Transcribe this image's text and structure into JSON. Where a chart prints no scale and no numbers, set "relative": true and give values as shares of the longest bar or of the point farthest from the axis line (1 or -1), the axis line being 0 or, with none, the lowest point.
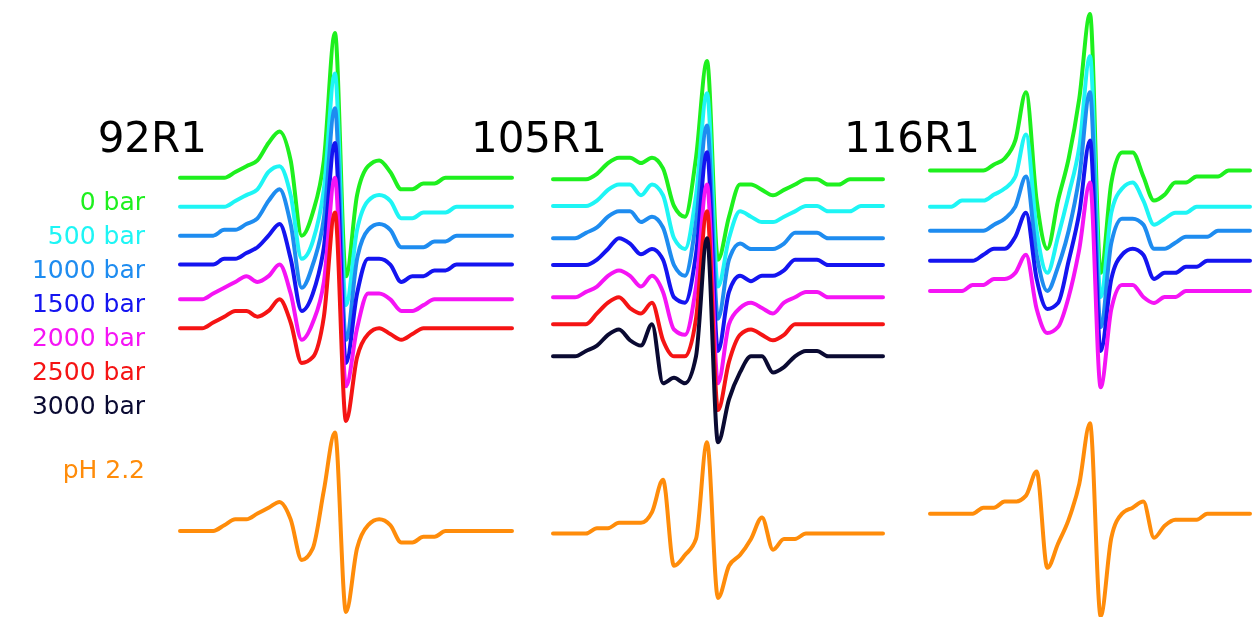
{
  "chart_data": [
    {
      "type": "line",
      "title": "92R1",
      "relative": true,
      "legend": "left",
      "categories": [
        null,
        null,
        null,
        null,
        null,
        null,
        null,
        null,
        null,
        null,
        null,
        null,
        null,
        null,
        null,
        null,
        null,
        null,
        null,
        null,
        null,
        null,
        null,
        null,
        null,
        null,
        null,
        null,
        null,
        null,
        null
      ],
      "series": [
        {
          "name": "0 bar",
          "color": "#1ef01e",
          "values": [
            0.75,
            0.75,
            0.75,
            0.75,
            0.75,
            0.76,
            0.77,
            0.78,
            0.81,
            0.83,
            0.78,
            0.65,
            0.69,
            0.78,
            1.0,
            0.58,
            0.72,
            0.77,
            0.78,
            0.76,
            0.73,
            0.73,
            0.74,
            0.74,
            0.75,
            0.75,
            0.75,
            0.75,
            0.75,
            0.75,
            0.75
          ]
        },
        {
          "name": "500 bar",
          "color": "#1ef5f5",
          "values": [
            0.7,
            0.7,
            0.7,
            0.7,
            0.7,
            0.71,
            0.72,
            0.73,
            0.76,
            0.77,
            0.72,
            0.61,
            0.64,
            0.73,
            0.93,
            0.53,
            0.66,
            0.71,
            0.72,
            0.71,
            0.68,
            0.68,
            0.69,
            0.69,
            0.69,
            0.7,
            0.7,
            0.7,
            0.7,
            0.7,
            0.7
          ]
        },
        {
          "name": "1000 bar",
          "color": "#1e8cf0",
          "values": [
            0.65,
            0.65,
            0.65,
            0.65,
            0.66,
            0.66,
            0.67,
            0.68,
            0.71,
            0.73,
            0.67,
            0.56,
            0.6,
            0.68,
            0.87,
            0.47,
            0.61,
            0.66,
            0.67,
            0.66,
            0.63,
            0.63,
            0.63,
            0.64,
            0.64,
            0.65,
            0.65,
            0.65,
            0.65,
            0.65,
            0.65
          ]
        },
        {
          "name": "1500 bar",
          "color": "#1414f0",
          "values": [
            0.6,
            0.6,
            0.6,
            0.6,
            0.61,
            0.61,
            0.62,
            0.63,
            0.65,
            0.67,
            0.61,
            0.52,
            0.55,
            0.63,
            0.81,
            0.43,
            0.55,
            0.61,
            0.61,
            0.6,
            0.57,
            0.58,
            0.58,
            0.59,
            0.59,
            0.6,
            0.6,
            0.6,
            0.6,
            0.6,
            0.6
          ]
        },
        {
          "name": "2000 bar",
          "color": "#f514f5",
          "values": [
            0.54,
            0.54,
            0.54,
            0.55,
            0.56,
            0.57,
            0.58,
            0.57,
            0.58,
            0.6,
            0.55,
            0.47,
            0.5,
            0.57,
            0.75,
            0.39,
            0.49,
            0.55,
            0.55,
            0.54,
            0.52,
            0.52,
            0.53,
            0.54,
            0.54,
            0.54,
            0.54,
            0.54,
            0.54,
            0.54,
            0.54
          ]
        },
        {
          "name": "2500 bar",
          "color": "#f51414",
          "values": [
            0.49,
            0.49,
            0.49,
            0.5,
            0.51,
            0.52,
            0.52,
            0.51,
            0.52,
            0.54,
            0.5,
            0.43,
            0.44,
            0.51,
            0.69,
            0.33,
            0.44,
            0.48,
            0.49,
            0.48,
            0.47,
            0.48,
            0.49,
            0.49,
            0.49,
            0.49,
            0.49,
            0.49,
            0.49,
            0.49,
            0.49
          ]
        },
        {
          "name": "pH 2.2",
          "color": "#ff8c0a",
          "values": [
            0.14,
            0.14,
            0.14,
            0.14,
            0.15,
            0.16,
            0.16,
            0.17,
            0.18,
            0.19,
            0.16,
            0.09,
            0.11,
            0.21,
            0.31,
            0.0,
            0.11,
            0.15,
            0.16,
            0.15,
            0.12,
            0.12,
            0.13,
            0.13,
            0.14,
            0.14,
            0.14,
            0.14,
            0.14,
            0.14,
            0.14
          ]
        }
      ]
    },
    {
      "type": "line",
      "title": "105R1",
      "relative": true,
      "categories": [
        null,
        null,
        null,
        null,
        null,
        null,
        null,
        null,
        null,
        null,
        null,
        null,
        null,
        null,
        null,
        null,
        null,
        null,
        null,
        null,
        null,
        null,
        null,
        null,
        null,
        null,
        null,
        null,
        null,
        null,
        null
      ],
      "series": [
        {
          "color": "#1ef01e",
          "values": [
            0.78,
            0.78,
            0.78,
            0.78,
            0.79,
            0.81,
            0.82,
            0.82,
            0.81,
            0.82,
            0.8,
            0.73,
            0.71,
            0.82,
            1.0,
            0.63,
            0.71,
            0.77,
            0.77,
            0.76,
            0.75,
            0.76,
            0.77,
            0.78,
            0.78,
            0.77,
            0.77,
            0.78,
            0.78,
            0.78,
            0.78
          ]
        },
        {
          "color": "#1ef5f5",
          "values": [
            0.73,
            0.73,
            0.73,
            0.73,
            0.74,
            0.76,
            0.77,
            0.77,
            0.75,
            0.77,
            0.75,
            0.67,
            0.65,
            0.75,
            0.94,
            0.58,
            0.67,
            0.72,
            0.71,
            0.7,
            0.7,
            0.71,
            0.72,
            0.73,
            0.73,
            0.72,
            0.72,
            0.72,
            0.73,
            0.73,
            0.73
          ]
        },
        {
          "color": "#1e8cf0",
          "values": [
            0.67,
            0.67,
            0.67,
            0.68,
            0.69,
            0.71,
            0.72,
            0.72,
            0.7,
            0.71,
            0.69,
            0.62,
            0.6,
            0.7,
            0.88,
            0.52,
            0.63,
            0.66,
            0.65,
            0.65,
            0.65,
            0.66,
            0.68,
            0.68,
            0.68,
            0.67,
            0.67,
            0.67,
            0.67,
            0.67,
            0.67
          ]
        },
        {
          "color": "#1414f0",
          "values": [
            0.62,
            0.62,
            0.62,
            0.62,
            0.63,
            0.65,
            0.67,
            0.66,
            0.64,
            0.65,
            0.63,
            0.56,
            0.55,
            0.64,
            0.83,
            0.46,
            0.57,
            0.6,
            0.59,
            0.6,
            0.6,
            0.61,
            0.63,
            0.63,
            0.63,
            0.62,
            0.62,
            0.62,
            0.62,
            0.62,
            0.62
          ]
        },
        {
          "color": "#f514f5",
          "values": [
            0.56,
            0.56,
            0.56,
            0.57,
            0.58,
            0.6,
            0.61,
            0.6,
            0.58,
            0.6,
            0.57,
            0.5,
            0.49,
            0.58,
            0.77,
            0.4,
            0.51,
            0.54,
            0.55,
            0.54,
            0.53,
            0.55,
            0.56,
            0.57,
            0.57,
            0.56,
            0.56,
            0.56,
            0.56,
            0.56,
            0.56
          ]
        },
        {
          "color": "#f51414",
          "values": [
            0.51,
            0.51,
            0.51,
            0.51,
            0.53,
            0.55,
            0.56,
            0.54,
            0.53,
            0.55,
            0.48,
            0.45,
            0.45,
            0.52,
            0.72,
            0.35,
            0.44,
            0.49,
            0.5,
            0.49,
            0.48,
            0.49,
            0.51,
            0.51,
            0.51,
            0.51,
            0.51,
            0.51,
            0.51,
            0.51,
            0.51
          ]
        },
        {
          "name": "3000 bar",
          "color": "#0a0a32",
          "values": [
            0.45,
            0.45,
            0.45,
            0.46,
            0.47,
            0.49,
            0.5,
            0.48,
            0.47,
            0.51,
            0.4,
            0.41,
            0.4,
            0.45,
            0.67,
            0.29,
            0.37,
            0.42,
            0.45,
            0.45,
            0.42,
            0.43,
            0.45,
            0.46,
            0.46,
            0.45,
            0.45,
            0.45,
            0.45,
            0.45,
            0.45
          ]
        },
        {
          "color": "#ff8c0a",
          "values": [
            0.12,
            0.12,
            0.12,
            0.12,
            0.13,
            0.13,
            0.14,
            0.14,
            0.14,
            0.16,
            0.22,
            0.06,
            0.08,
            0.11,
            0.29,
            0.0,
            0.06,
            0.08,
            0.11,
            0.15,
            0.09,
            0.11,
            0.11,
            0.12,
            0.12,
            0.12,
            0.12,
            0.12,
            0.12,
            0.12,
            0.12
          ]
        }
      ]
    },
    {
      "type": "line",
      "title": "116R1",
      "relative": true,
      "categories": [
        null,
        null,
        null,
        null,
        null,
        null,
        null,
        null,
        null,
        null,
        null,
        null,
        null,
        null,
        null,
        null,
        null,
        null,
        null,
        null,
        null,
        null,
        null,
        null,
        null,
        null,
        null,
        null,
        null,
        null,
        null
      ],
      "series": [
        {
          "color": "#1ef01e",
          "values": [
            0.74,
            0.74,
            0.74,
            0.74,
            0.74,
            0.74,
            0.75,
            0.76,
            0.79,
            0.87,
            0.69,
            0.61,
            0.69,
            0.76,
            0.86,
            1.0,
            0.57,
            0.72,
            0.77,
            0.77,
            0.73,
            0.69,
            0.7,
            0.72,
            0.72,
            0.73,
            0.73,
            0.73,
            0.74,
            0.74,
            0.74
          ]
        },
        {
          "color": "#1ef5f5",
          "values": [
            0.68,
            0.68,
            0.68,
            0.69,
            0.69,
            0.69,
            0.7,
            0.71,
            0.73,
            0.8,
            0.64,
            0.57,
            0.63,
            0.7,
            0.78,
            0.93,
            0.53,
            0.67,
            0.71,
            0.72,
            0.69,
            0.65,
            0.66,
            0.67,
            0.67,
            0.68,
            0.68,
            0.68,
            0.68,
            0.68,
            0.68
          ]
        },
        {
          "color": "#1e8cf0",
          "values": [
            0.64,
            0.64,
            0.64,
            0.64,
            0.64,
            0.64,
            0.65,
            0.66,
            0.68,
            0.73,
            0.6,
            0.54,
            0.58,
            0.64,
            0.73,
            0.87,
            0.48,
            0.62,
            0.66,
            0.66,
            0.65,
            0.61,
            0.61,
            0.62,
            0.63,
            0.63,
            0.63,
            0.64,
            0.64,
            0.64,
            0.64
          ]
        },
        {
          "color": "#1414f0",
          "values": [
            0.59,
            0.59,
            0.59,
            0.59,
            0.59,
            0.6,
            0.61,
            0.61,
            0.63,
            0.67,
            0.56,
            0.51,
            0.52,
            0.59,
            0.67,
            0.79,
            0.44,
            0.56,
            0.6,
            0.61,
            0.6,
            0.56,
            0.57,
            0.57,
            0.58,
            0.58,
            0.59,
            0.59,
            0.59,
            0.59,
            0.59
          ]
        },
        {
          "color": "#f514f5",
          "values": [
            0.54,
            0.54,
            0.54,
            0.54,
            0.55,
            0.55,
            0.56,
            0.56,
            0.57,
            0.6,
            0.51,
            0.47,
            0.48,
            0.53,
            0.61,
            0.72,
            0.38,
            0.51,
            0.55,
            0.55,
            0.53,
            0.52,
            0.53,
            0.53,
            0.54,
            0.54,
            0.54,
            0.54,
            0.54,
            0.54,
            0.54
          ]
        },
        {
          "color": "#ff8c0a",
          "values": [
            0.17,
            0.17,
            0.17,
            0.17,
            0.17,
            0.18,
            0.18,
            0.19,
            0.19,
            0.2,
            0.24,
            0.08,
            0.12,
            0.16,
            0.22,
            0.32,
            0.0,
            0.13,
            0.17,
            0.18,
            0.19,
            0.13,
            0.15,
            0.16,
            0.16,
            0.16,
            0.17,
            0.17,
            0.17,
            0.17,
            0.17
          ]
        }
      ]
    }
  ]
}
